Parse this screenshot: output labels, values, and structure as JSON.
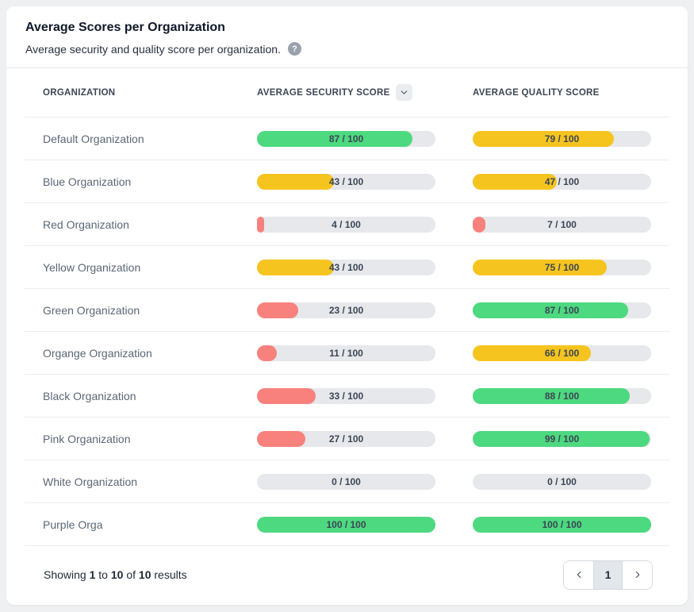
{
  "colors": {
    "green": "#4dd97f",
    "yellow": "#f6c41f",
    "red": "#f8817d",
    "track": "#e6e8eb"
  },
  "header": {
    "title": "Average Scores per Organization",
    "subtitle": "Average security and quality score per organization.",
    "help_glyph": "?"
  },
  "table": {
    "columns": [
      "ORGANIZATION",
      "AVERAGE SECURITY SCORE",
      "AVERAGE QUALITY SCORE"
    ],
    "rows": [
      {
        "org": "Default Organization",
        "security": {
          "value": 87,
          "max": 100,
          "label": "87 / 100",
          "color": "green"
        },
        "quality": {
          "value": 79,
          "max": 100,
          "label": "79 / 100",
          "color": "yellow"
        }
      },
      {
        "org": "Blue Organization",
        "security": {
          "value": 43,
          "max": 100,
          "label": "43 / 100",
          "color": "yellow"
        },
        "quality": {
          "value": 47,
          "max": 100,
          "label": "47 / 100",
          "color": "yellow"
        }
      },
      {
        "org": "Red Organization",
        "security": {
          "value": 4,
          "max": 100,
          "label": "4 / 100",
          "color": "red"
        },
        "quality": {
          "value": 7,
          "max": 100,
          "label": "7 / 100",
          "color": "red"
        }
      },
      {
        "org": "Yellow Organization",
        "security": {
          "value": 43,
          "max": 100,
          "label": "43 / 100",
          "color": "yellow"
        },
        "quality": {
          "value": 75,
          "max": 100,
          "label": "75 / 100",
          "color": "yellow"
        }
      },
      {
        "org": "Green Organization",
        "security": {
          "value": 23,
          "max": 100,
          "label": "23 / 100",
          "color": "red"
        },
        "quality": {
          "value": 87,
          "max": 100,
          "label": "87 / 100",
          "color": "green"
        }
      },
      {
        "org": "Organge Organization",
        "security": {
          "value": 11,
          "max": 100,
          "label": "11 / 100",
          "color": "red"
        },
        "quality": {
          "value": 66,
          "max": 100,
          "label": "66 / 100",
          "color": "yellow"
        }
      },
      {
        "org": "Black Organization",
        "security": {
          "value": 33,
          "max": 100,
          "label": "33 / 100",
          "color": "red"
        },
        "quality": {
          "value": 88,
          "max": 100,
          "label": "88 / 100",
          "color": "green"
        }
      },
      {
        "org": "Pink Organization",
        "security": {
          "value": 27,
          "max": 100,
          "label": "27 / 100",
          "color": "red"
        },
        "quality": {
          "value": 99,
          "max": 100,
          "label": "99 / 100",
          "color": "green"
        }
      },
      {
        "org": "White Organization",
        "security": {
          "value": 0,
          "max": 100,
          "label": "0 / 100",
          "color": "none"
        },
        "quality": {
          "value": 0,
          "max": 100,
          "label": "0 / 100",
          "color": "none"
        }
      },
      {
        "org": "Purple Orga",
        "security": {
          "value": 100,
          "max": 100,
          "label": "100 / 100",
          "color": "green"
        },
        "quality": {
          "value": 100,
          "max": 100,
          "label": "100 / 100",
          "color": "green"
        }
      }
    ]
  },
  "footer": {
    "summary": {
      "showing": "Showing",
      "from": "1",
      "to_word": "to",
      "to": "10",
      "of_word": "of",
      "total": "10",
      "results_word": "results"
    },
    "pagination": {
      "current_page": "1"
    }
  }
}
